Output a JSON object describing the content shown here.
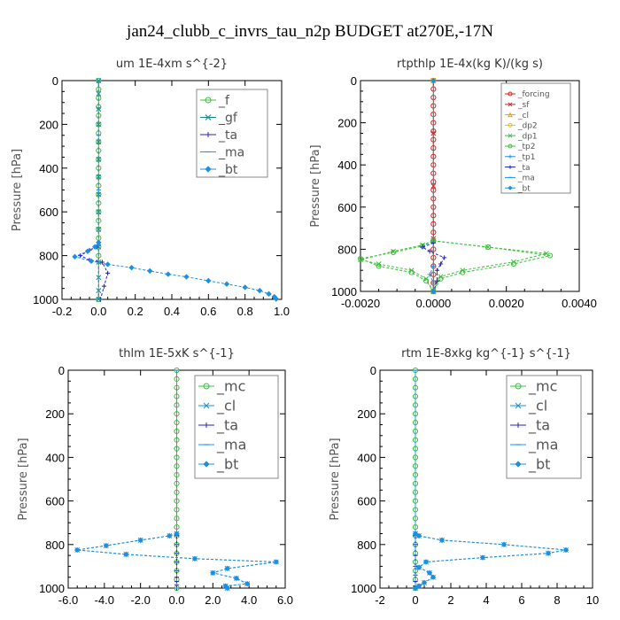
{
  "figure": {
    "title": "jan24_clubb_c_invrs_tau_n2p  BUDGET at270E,-17N"
  },
  "chart_data": [
    {
      "type": "line",
      "title": "um  1E-4xm s^{-2}",
      "ylabel": "Pressure [hPa]",
      "xlim": [
        -0.2,
        1.0
      ],
      "ylim": [
        1000,
        0
      ],
      "xticks": [
        "-0.2",
        "0.0",
        "0.2",
        "0.4",
        "0.6",
        "0.8",
        "1.0"
      ],
      "yticks": [
        "0",
        "200",
        "400",
        "600",
        "800",
        "1000"
      ],
      "series": [
        {
          "name": "_f",
          "color": "#3cc03c",
          "marker": "circle",
          "x": [
            0,
            0,
            0,
            0,
            0,
            0,
            0,
            0,
            0,
            0,
            0,
            0,
            0,
            0,
            0,
            0,
            0,
            0,
            0,
            0,
            0,
            0
          ],
          "y": [
            0,
            40,
            80,
            120,
            160,
            200,
            240,
            280,
            320,
            360,
            400,
            440,
            480,
            520,
            560,
            600,
            640,
            680,
            720,
            760,
            800,
            1000
          ]
        },
        {
          "name": "_gf",
          "color": "#0f8a8a",
          "marker": "x",
          "x": [
            0,
            0,
            0,
            0,
            0,
            0,
            0,
            0,
            0,
            0,
            0,
            0,
            0,
            0,
            0
          ],
          "y": [
            0,
            60,
            130,
            200,
            280,
            360,
            440,
            520,
            600,
            680,
            760,
            830,
            900,
            960,
            1000
          ]
        },
        {
          "name": "_ta",
          "color": "#2020c8",
          "marker": "plus",
          "x": [
            0,
            -0.01,
            -0.05,
            -0.1,
            -0.05,
            0.02,
            0.05,
            0.03,
            0.01
          ],
          "y": [
            740,
            760,
            775,
            800,
            820,
            830,
            880,
            940,
            1000
          ]
        },
        {
          "name": "_ma",
          "color": "#1e90ff",
          "marker": "dash",
          "x": [
            0,
            0,
            0,
            0,
            0
          ],
          "y": [
            0,
            250,
            500,
            750,
            1000
          ]
        },
        {
          "name": "_bt",
          "color": "#1e8fe0",
          "marker": "diamond",
          "x": [
            0,
            -0.02,
            -0.06,
            -0.13,
            -0.04,
            0.05,
            0.18,
            0.28,
            0.38,
            0.48,
            0.6,
            0.7,
            0.8,
            0.88,
            0.93,
            0.96,
            0.97
          ],
          "y": [
            740,
            760,
            780,
            805,
            825,
            840,
            855,
            870,
            885,
            897,
            915,
            930,
            945,
            960,
            975,
            988,
            998
          ]
        }
      ],
      "legend": {
        "position": "top-right",
        "entries": [
          "_f",
          "_gf",
          "_ta",
          "_ma",
          "_bt"
        ]
      }
    },
    {
      "type": "line",
      "title": "rtpthlp  1E-4x(kg K)/(kg s)",
      "ylabel": "Pressure [hPa]",
      "xlim": [
        -0.002,
        0.004
      ],
      "ylim": [
        1000,
        0
      ],
      "xticks": [
        "-0.0020",
        "0.0000",
        "0.0020",
        "0.0040"
      ],
      "yticks": [
        "0",
        "200",
        "400",
        "600",
        "800",
        "1000"
      ],
      "series": [
        {
          "name": "_forcing",
          "color": "#e02020",
          "marker": "circle",
          "x": [
            0,
            0,
            0,
            0,
            0,
            0,
            0,
            0,
            0,
            0,
            0,
            0,
            0,
            0,
            0,
            0,
            0,
            0,
            0,
            0,
            0,
            0,
            0,
            0,
            0,
            0
          ],
          "y": [
            0,
            40,
            80,
            120,
            160,
            200,
            240,
            280,
            320,
            360,
            400,
            440,
            480,
            520,
            560,
            600,
            640,
            680,
            720,
            760,
            800,
            840,
            880,
            920,
            960,
            1000
          ]
        },
        {
          "name": "_sf",
          "color": "#e02020",
          "marker": "x",
          "x": [
            0,
            0,
            0,
            0,
            0
          ],
          "y": [
            0,
            250,
            500,
            750,
            1000
          ]
        },
        {
          "name": "_cl",
          "color": "#f0a000",
          "marker": "triangle",
          "x": [
            0,
            0
          ],
          "y": [
            0,
            1000
          ]
        },
        {
          "name": "_dp2",
          "color": "#f0c000",
          "marker": "circle",
          "x": [
            0,
            0
          ],
          "y": [
            0,
            1000
          ]
        },
        {
          "name": "_dp1",
          "color": "#3cc03c",
          "marker": "x",
          "x": [
            0,
            0.0015,
            0.0031,
            0.0022,
            0.0008,
            0.0002,
            0,
            -0.0002,
            -0.0006,
            -0.0015,
            -0.002,
            -0.0011,
            -0.0003,
            0
          ],
          "y": [
            760,
            790,
            820,
            860,
            900,
            930,
            1000,
            940,
            900,
            870,
            850,
            810,
            780,
            760
          ]
        },
        {
          "name": "_tp2",
          "color": "#3cc03c",
          "marker": "circle",
          "x": [
            0,
            0.0015,
            0.0032,
            0.0022,
            0.0008,
            0.0002,
            0,
            -0.0002,
            -0.0006,
            -0.0015,
            -0.002,
            -0.0011,
            -0.0003,
            0
          ],
          "y": [
            760,
            790,
            830,
            870,
            910,
            940,
            1000,
            950,
            910,
            880,
            845,
            815,
            785,
            760
          ]
        },
        {
          "name": "_tp1",
          "color": "#1e8fe0",
          "marker": "plus",
          "x": [
            0,
            -0.0001,
            0,
            0
          ],
          "y": [
            880,
            920,
            960,
            1000
          ]
        },
        {
          "name": "_ta",
          "color": "#2020c8",
          "marker": "plus",
          "x": [
            0,
            -0.0003,
            -0.0001,
            0.0003,
            0.0002,
            0.0001,
            0.0001,
            0
          ],
          "y": [
            770,
            790,
            810,
            840,
            870,
            900,
            950,
            1000
          ]
        },
        {
          "name": "_ma",
          "color": "#1e90ff",
          "marker": "dash",
          "x": [
            0,
            0
          ],
          "y": [
            0,
            1000
          ]
        },
        {
          "name": "_bt",
          "color": "#1e8fe0",
          "marker": "diamond",
          "x": [
            0,
            0
          ],
          "y": [
            0,
            1000
          ]
        }
      ],
      "legend": {
        "position": "top-right",
        "entries": [
          "_forcing",
          "_sf",
          "_cl",
          "_dp2",
          "_dp1",
          "_tp2",
          "_tp1",
          "_ta",
          "_ma",
          "_bt"
        ]
      }
    },
    {
      "type": "line",
      "title": "thlm  1E-5xK s^{-1}",
      "ylabel": "Pressure [hPa]",
      "xlim": [
        -6.0,
        6.0
      ],
      "ylim": [
        1000,
        0
      ],
      "xticks": [
        "-6.0",
        "-4.0",
        "-2.0",
        "0.0",
        "2.0",
        "4.0",
        "6.0"
      ],
      "yticks": [
        "0",
        "200",
        "400",
        "600",
        "800",
        "1000"
      ],
      "series": [
        {
          "name": "_mc",
          "color": "#3cc03c",
          "marker": "circle",
          "x": [
            0,
            0,
            0,
            0,
            0,
            0,
            0,
            0,
            0,
            0,
            0,
            0,
            0,
            0,
            0,
            0,
            0,
            0,
            0,
            0,
            0,
            0,
            0,
            0,
            0,
            0
          ],
          "y": [
            0,
            40,
            80,
            120,
            160,
            200,
            240,
            280,
            320,
            360,
            400,
            440,
            480,
            520,
            560,
            600,
            640,
            680,
            720,
            760,
            800,
            840,
            880,
            920,
            960,
            1000
          ]
        },
        {
          "name": "_cl",
          "color": "#1e8fe0",
          "marker": "x",
          "x": [
            0,
            -0.4,
            -2.0,
            -3.9,
            -5.5,
            -2.8,
            1.0,
            5.5,
            2.8,
            2.0,
            3.3,
            3.9,
            2.7,
            2.8
          ],
          "y": [
            750,
            760,
            780,
            805,
            825,
            845,
            865,
            880,
            910,
            930,
            955,
            980,
            990,
            1000
          ]
        },
        {
          "name": "_ta",
          "color": "#2020c8",
          "marker": "plus",
          "x": [
            0,
            0,
            0,
            0,
            0,
            0,
            0,
            0,
            0
          ],
          "y": [
            760,
            800,
            840,
            880,
            920,
            950,
            970,
            985,
            1000
          ]
        },
        {
          "name": "_ma",
          "color": "#1e90ff",
          "marker": "dash",
          "x": [
            0,
            0
          ],
          "y": [
            0,
            1000
          ]
        },
        {
          "name": "_bt",
          "color": "#1e8fe0",
          "marker": "diamond",
          "x": [
            0,
            -0.4,
            -2.0,
            -3.9,
            -5.5,
            -2.8,
            1.0,
            5.5,
            2.8,
            2.0,
            3.3,
            3.9,
            2.7,
            2.8
          ],
          "y": [
            750,
            760,
            780,
            805,
            825,
            845,
            865,
            880,
            910,
            930,
            955,
            980,
            990,
            1000
          ]
        }
      ],
      "legend": {
        "position": "top-right",
        "entries": [
          "_mc",
          "_cl",
          "_ta",
          "_ma",
          "_bt"
        ]
      }
    },
    {
      "type": "line",
      "title": "rtm  1E-8xkg kg^{-1} s^{-1}",
      "ylabel": "Pressure [hPa]",
      "xlim": [
        -2,
        10
      ],
      "ylim": [
        1000,
        0
      ],
      "xticks": [
        "-2",
        "0",
        "2",
        "4",
        "6",
        "8",
        "10"
      ],
      "yticks": [
        "0",
        "200",
        "400",
        "600",
        "800",
        "1000"
      ],
      "series": [
        {
          "name": "_mc",
          "color": "#3cc03c",
          "marker": "circle",
          "x": [
            0,
            0,
            0,
            0,
            0,
            0,
            0,
            0,
            0,
            0,
            0,
            0,
            0,
            0,
            0,
            0,
            0,
            0,
            0,
            0,
            0,
            0,
            0,
            0,
            0,
            0
          ],
          "y": [
            0,
            40,
            80,
            120,
            160,
            200,
            240,
            280,
            320,
            360,
            400,
            440,
            480,
            520,
            560,
            600,
            640,
            680,
            720,
            760,
            800,
            840,
            880,
            920,
            960,
            1000
          ]
        },
        {
          "name": "_cl",
          "color": "#1e8fe0",
          "marker": "x",
          "x": [
            0,
            0.2,
            1.5,
            5.0,
            8.5,
            7.5,
            3.8,
            0.6,
            0.2,
            0.8,
            1.0,
            0.5,
            0.2,
            0
          ],
          "y": [
            750,
            760,
            780,
            800,
            825,
            840,
            860,
            880,
            905,
            930,
            950,
            975,
            990,
            1000
          ]
        },
        {
          "name": "_ta",
          "color": "#2020c8",
          "marker": "plus",
          "x": [
            0,
            0,
            0,
            0,
            0,
            0,
            0,
            0
          ],
          "y": [
            760,
            800,
            850,
            900,
            940,
            970,
            990,
            1000
          ]
        },
        {
          "name": "_ma",
          "color": "#1e90ff",
          "marker": "dash",
          "x": [
            0,
            0
          ],
          "y": [
            0,
            1000
          ]
        },
        {
          "name": "_bt",
          "color": "#1e8fe0",
          "marker": "diamond",
          "x": [
            0,
            0.2,
            1.5,
            5.0,
            8.5,
            7.5,
            3.8,
            0.6,
            0.2,
            0.8,
            1.0,
            0.5,
            0.2,
            0
          ],
          "y": [
            750,
            760,
            780,
            800,
            825,
            840,
            860,
            880,
            905,
            930,
            950,
            975,
            990,
            1000
          ]
        }
      ],
      "legend": {
        "position": "top-right",
        "entries": [
          "_mc",
          "_cl",
          "_ta",
          "_ma",
          "_bt"
        ]
      }
    }
  ]
}
